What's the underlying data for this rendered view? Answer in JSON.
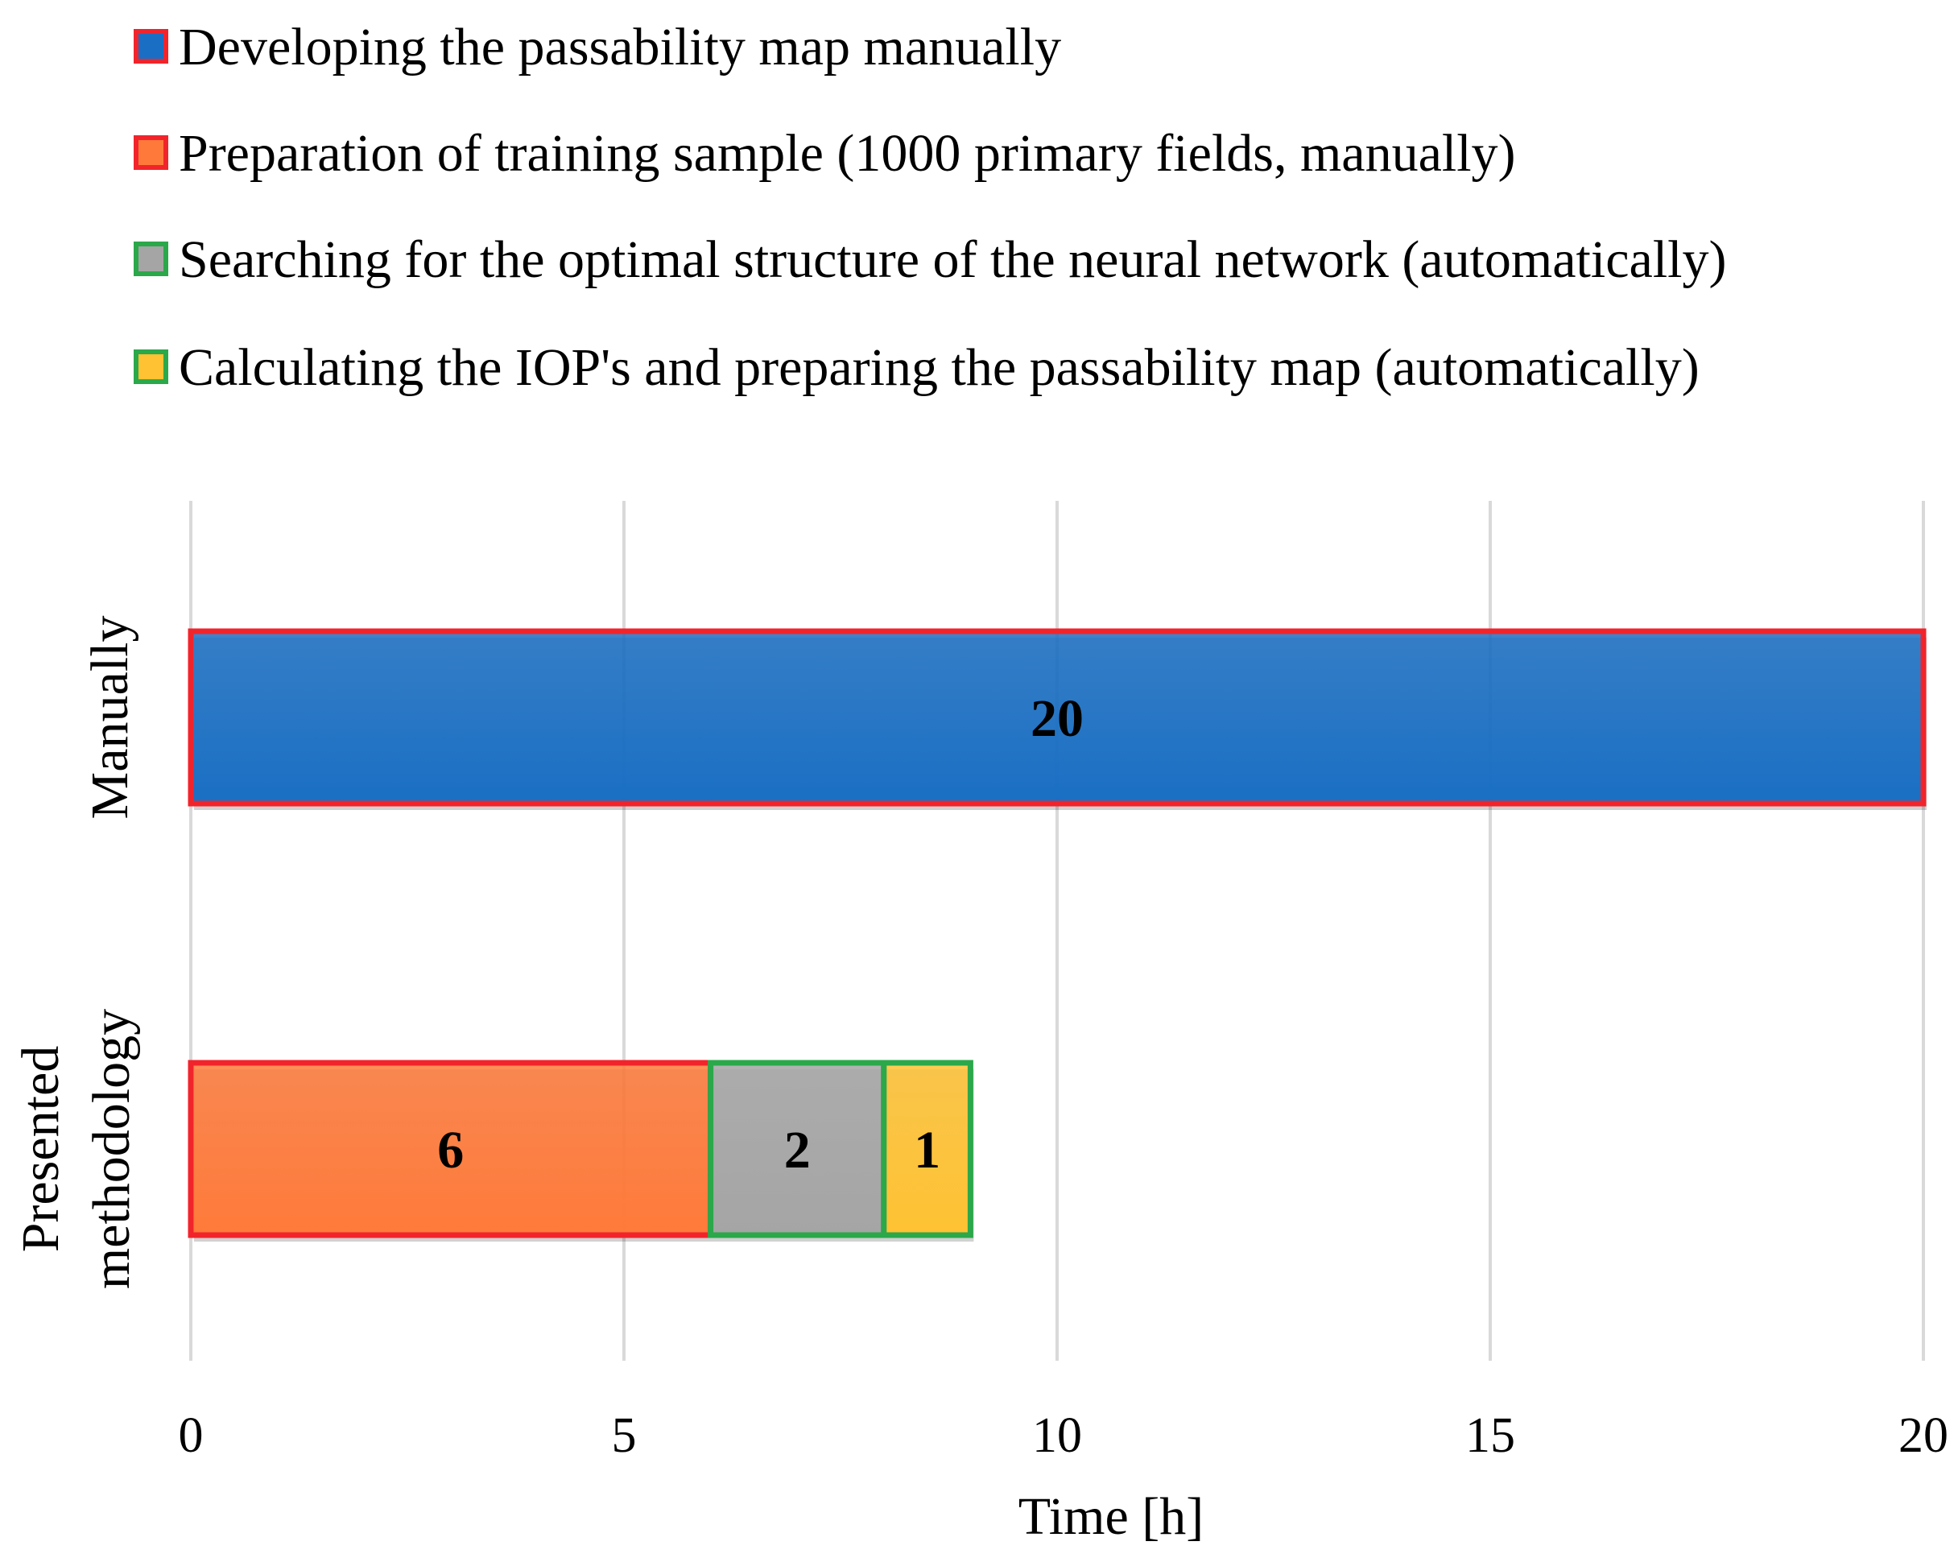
{
  "chart_data": {
    "type": "bar",
    "orientation": "horizontal",
    "stacked": true,
    "categories": [
      "Manually",
      "Presented methodology"
    ],
    "series": [
      {
        "name": "Developing the passability map manually",
        "values": [
          20,
          0
        ],
        "fill": "#1A6FC4",
        "border": "#F2242B"
      },
      {
        "name": "Preparation of training sample (1000 primary fields, manually)",
        "values": [
          0,
          6
        ],
        "fill": "#FF7A3A",
        "border": "#F2242B"
      },
      {
        "name": "Searching for the optimal structure of the neural network (automatically)",
        "values": [
          0,
          2
        ],
        "fill": "#A5A5A5",
        "border": "#2BA84A"
      },
      {
        "name": "Calculating the IOP's and preparing the passability map (automatically)",
        "values": [
          0,
          1
        ],
        "fill": "#FFC233",
        "border": "#2BA84A"
      }
    ],
    "data_labels": [
      "20",
      "6",
      "2",
      "1"
    ],
    "xlabel": "Time [h]",
    "ylabel": "",
    "xlim": [
      0,
      20
    ],
    "xticks": [
      "0",
      "5",
      "10",
      "15",
      "20"
    ],
    "grid": "vertical",
    "legend_position": "top"
  }
}
